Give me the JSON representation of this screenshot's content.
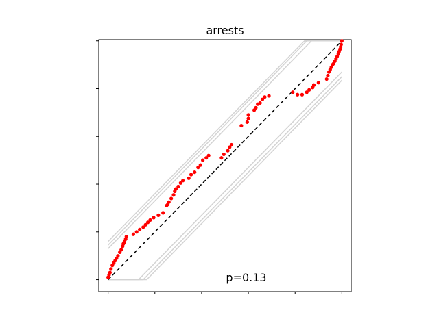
{
  "chart_data": {
    "type": "scatter",
    "title": "arrests",
    "xlabel": "",
    "ylabel": "",
    "annotation": "p=0.13",
    "xlim": [
      -0.04,
      1.04
    ],
    "ylim": [
      -0.05,
      1.005
    ],
    "x_ticks": [
      0.0,
      0.2,
      0.4,
      0.6,
      0.8,
      1.0
    ],
    "y_ticks": [
      0.0,
      0.2,
      0.4,
      0.6,
      0.8,
      1.0
    ],
    "x_tick_labels": [
      "",
      "",
      "",
      "",
      "",
      ""
    ],
    "y_tick_labels": [
      "",
      "",
      "",
      "",
      "",
      ""
    ],
    "grid": false,
    "reference_line": {
      "style": "dashed",
      "color": "#000000",
      "x": [
        0.0,
        1.0
      ],
      "y": [
        0.0,
        1.0
      ]
    },
    "envelope_lines": {
      "color": "#d3d3d3",
      "lines": [
        {
          "x": [
            0.0,
            0.84,
            1.0
          ],
          "y": [
            0.16,
            1.0,
            1.0
          ]
        },
        {
          "x": [
            0.0,
            0.85,
            1.0
          ],
          "y": [
            0.145,
            1.0,
            1.0
          ]
        },
        {
          "x": [
            0.0,
            0.87,
            1.0
          ],
          "y": [
            0.13,
            1.0,
            1.0
          ]
        },
        {
          "x": [
            0.0,
            0.13,
            1.0
          ],
          "y": [
            0.0,
            0.0,
            0.87
          ]
        },
        {
          "x": [
            0.0,
            0.15,
            1.0
          ],
          "y": [
            0.0,
            0.0,
            0.85
          ]
        },
        {
          "x": [
            0.0,
            0.165,
            1.0
          ],
          "y": [
            0.0,
            0.0,
            0.835
          ]
        }
      ]
    },
    "series": [
      {
        "marker_color": "#ff0000",
        "x": [
          0.0,
          0.004,
          0.008,
          0.012,
          0.018,
          0.024,
          0.03,
          0.036,
          0.042,
          0.05,
          0.056,
          0.062,
          0.065,
          0.068,
          0.07,
          0.075,
          0.078,
          0.108,
          0.122,
          0.135,
          0.15,
          0.16,
          0.17,
          0.18,
          0.195,
          0.215,
          0.235,
          0.25,
          0.255,
          0.26,
          0.27,
          0.28,
          0.285,
          0.29,
          0.3,
          0.31,
          0.32,
          0.345,
          0.355,
          0.37,
          0.385,
          0.395,
          0.405,
          0.42,
          0.43,
          0.485,
          0.495,
          0.512,
          0.52,
          0.528,
          0.57,
          0.595,
          0.6,
          0.6,
          0.625,
          0.632,
          0.64,
          0.65,
          0.66,
          0.67,
          0.688,
          0.79,
          0.81,
          0.83,
          0.85,
          0.86,
          0.875,
          0.88,
          0.9,
          0.935,
          0.94,
          0.945,
          0.95,
          0.955,
          0.96,
          0.965,
          0.97,
          0.975,
          0.98,
          0.985,
          0.988,
          0.992,
          0.995,
          0.997,
          1.0
        ],
        "y": [
          0.01,
          0.02,
          0.03,
          0.045,
          0.06,
          0.07,
          0.08,
          0.09,
          0.1,
          0.115,
          0.125,
          0.14,
          0.15,
          0.155,
          0.16,
          0.17,
          0.18,
          0.19,
          0.2,
          0.21,
          0.22,
          0.23,
          0.24,
          0.25,
          0.26,
          0.27,
          0.28,
          0.31,
          0.315,
          0.325,
          0.34,
          0.355,
          0.37,
          0.38,
          0.39,
          0.405,
          0.415,
          0.425,
          0.44,
          0.45,
          0.47,
          0.48,
          0.5,
          0.51,
          0.52,
          0.51,
          0.525,
          0.54,
          0.555,
          0.565,
          0.645,
          0.66,
          0.675,
          0.69,
          0.71,
          0.72,
          0.735,
          0.74,
          0.755,
          0.765,
          0.77,
          0.785,
          0.775,
          0.775,
          0.785,
          0.795,
          0.805,
          0.815,
          0.825,
          0.84,
          0.855,
          0.87,
          0.88,
          0.89,
          0.9,
          0.905,
          0.915,
          0.925,
          0.935,
          0.945,
          0.955,
          0.965,
          0.975,
          0.985,
          1.0
        ]
      }
    ]
  }
}
